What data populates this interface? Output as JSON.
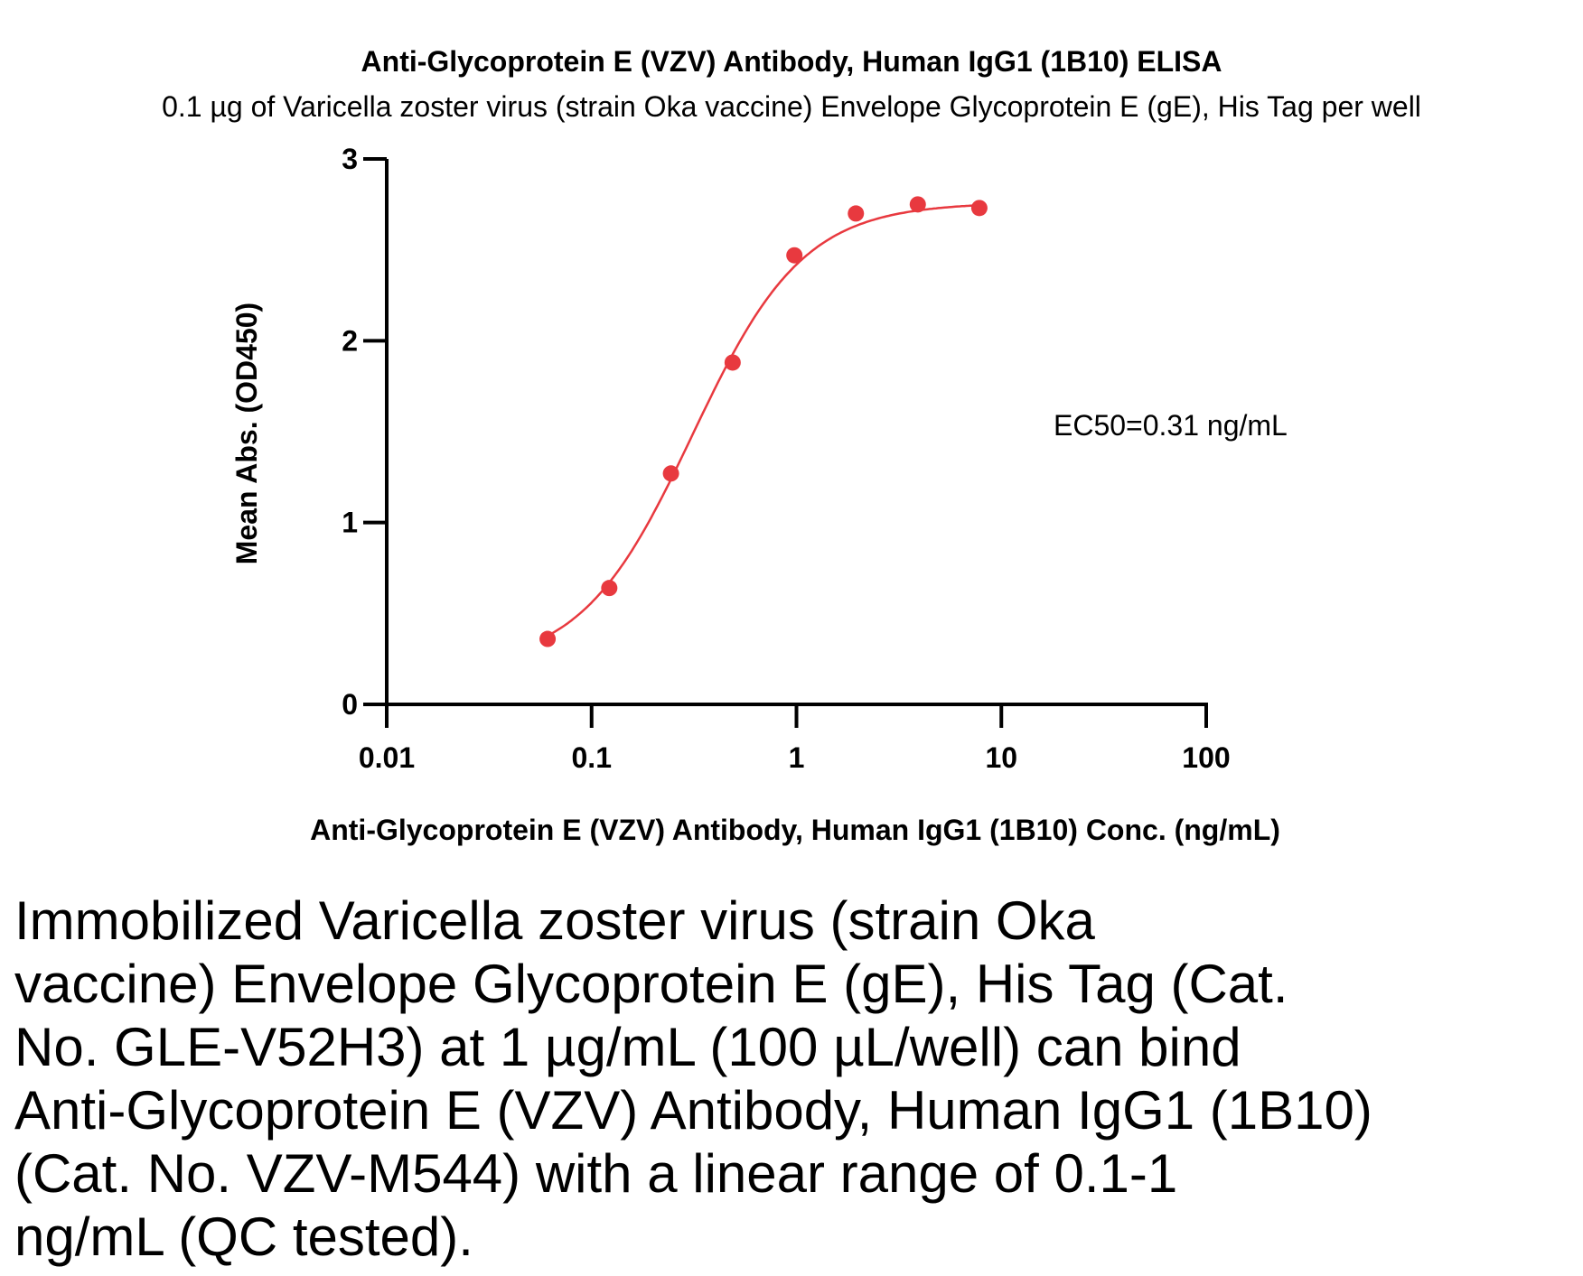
{
  "chart_data": {
    "type": "scatter",
    "title": "Anti-Glycoprotein E (VZV) Antibody, Human IgG1 (1B10) ELISA",
    "subtitle": "0.1 µg of Varicella zoster virus (strain Oka vaccine) Envelope Glycoprotein E (gE), His Tag per well",
    "xlabel": "Anti-Glycoprotein E (VZV) Antibody, Human IgG1 (1B10) Conc. (ng/mL)",
    "ylabel": "Mean Abs. (OD450)",
    "x_scale": "log",
    "xlim": [
      0.01,
      100
    ],
    "ylim": [
      0,
      3
    ],
    "x_ticks": [
      "0.01",
      "0.1",
      "1",
      "10",
      "100"
    ],
    "y_ticks": [
      "0",
      "1",
      "2",
      "3"
    ],
    "series": [
      {
        "color": "#e8393f",
        "points": [
          {
            "x": 0.061,
            "y": 0.36
          },
          {
            "x": 0.122,
            "y": 0.64
          },
          {
            "x": 0.244,
            "y": 1.27
          },
          {
            "x": 0.488,
            "y": 1.88
          },
          {
            "x": 0.977,
            "y": 2.47
          },
          {
            "x": 1.95,
            "y": 2.7
          },
          {
            "x": 3.91,
            "y": 2.75
          },
          {
            "x": 7.81,
            "y": 2.73
          }
        ]
      }
    ],
    "fit_curve": {
      "bottom": 0.2,
      "top": 2.76,
      "ec50": 0.31,
      "hill": 1.6,
      "color": "#e8393f"
    },
    "annotation": "EC50=0.31 ng/mL"
  },
  "caption": "Immobilized Varicella zoster virus (strain Oka\nvaccine) Envelope Glycoprotein E (gE), His Tag (Cat.\nNo. GLE-V52H3) at 1 µg/mL (100 µL/well) can bind\nAnti-Glycoprotein E (VZV) Antibody, Human IgG1 (1B10)\n(Cat. No. VZV-M544) with a linear range of 0.1-1\nng/mL (QC tested)."
}
